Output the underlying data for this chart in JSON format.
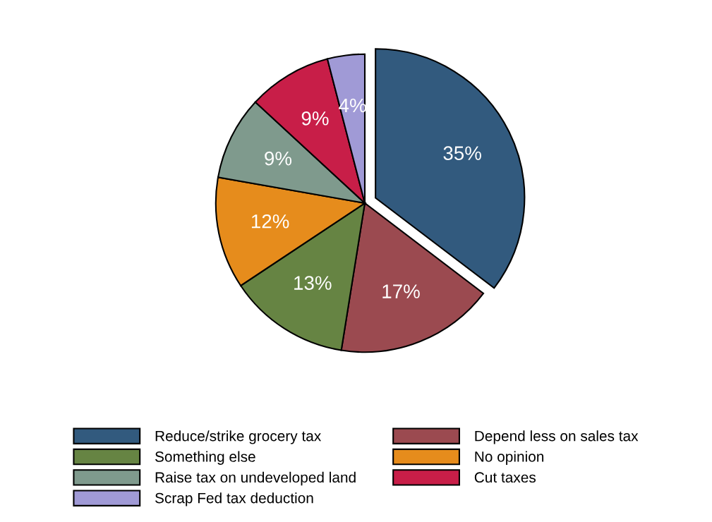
{
  "chart_data": {
    "type": "pie",
    "categories": [
      "Reduce/strike grocery tax",
      "Depend less on sales tax",
      "Something else",
      "No opinion",
      "Raise tax on undeveloped land",
      "Cut taxes",
      "Scrap Fed tax deduction"
    ],
    "values": [
      35,
      17,
      13,
      12,
      9,
      9,
      4
    ],
    "colors": [
      "#325a7e",
      "#9b4a50",
      "#668443",
      "#e68c1c",
      "#7f9a8d",
      "#c81e48",
      "#a09ad6"
    ],
    "value_labels": [
      "35%",
      "17%",
      "13%",
      "12%",
      "9%",
      "9%",
      "4%"
    ],
    "legend": "bottom"
  }
}
